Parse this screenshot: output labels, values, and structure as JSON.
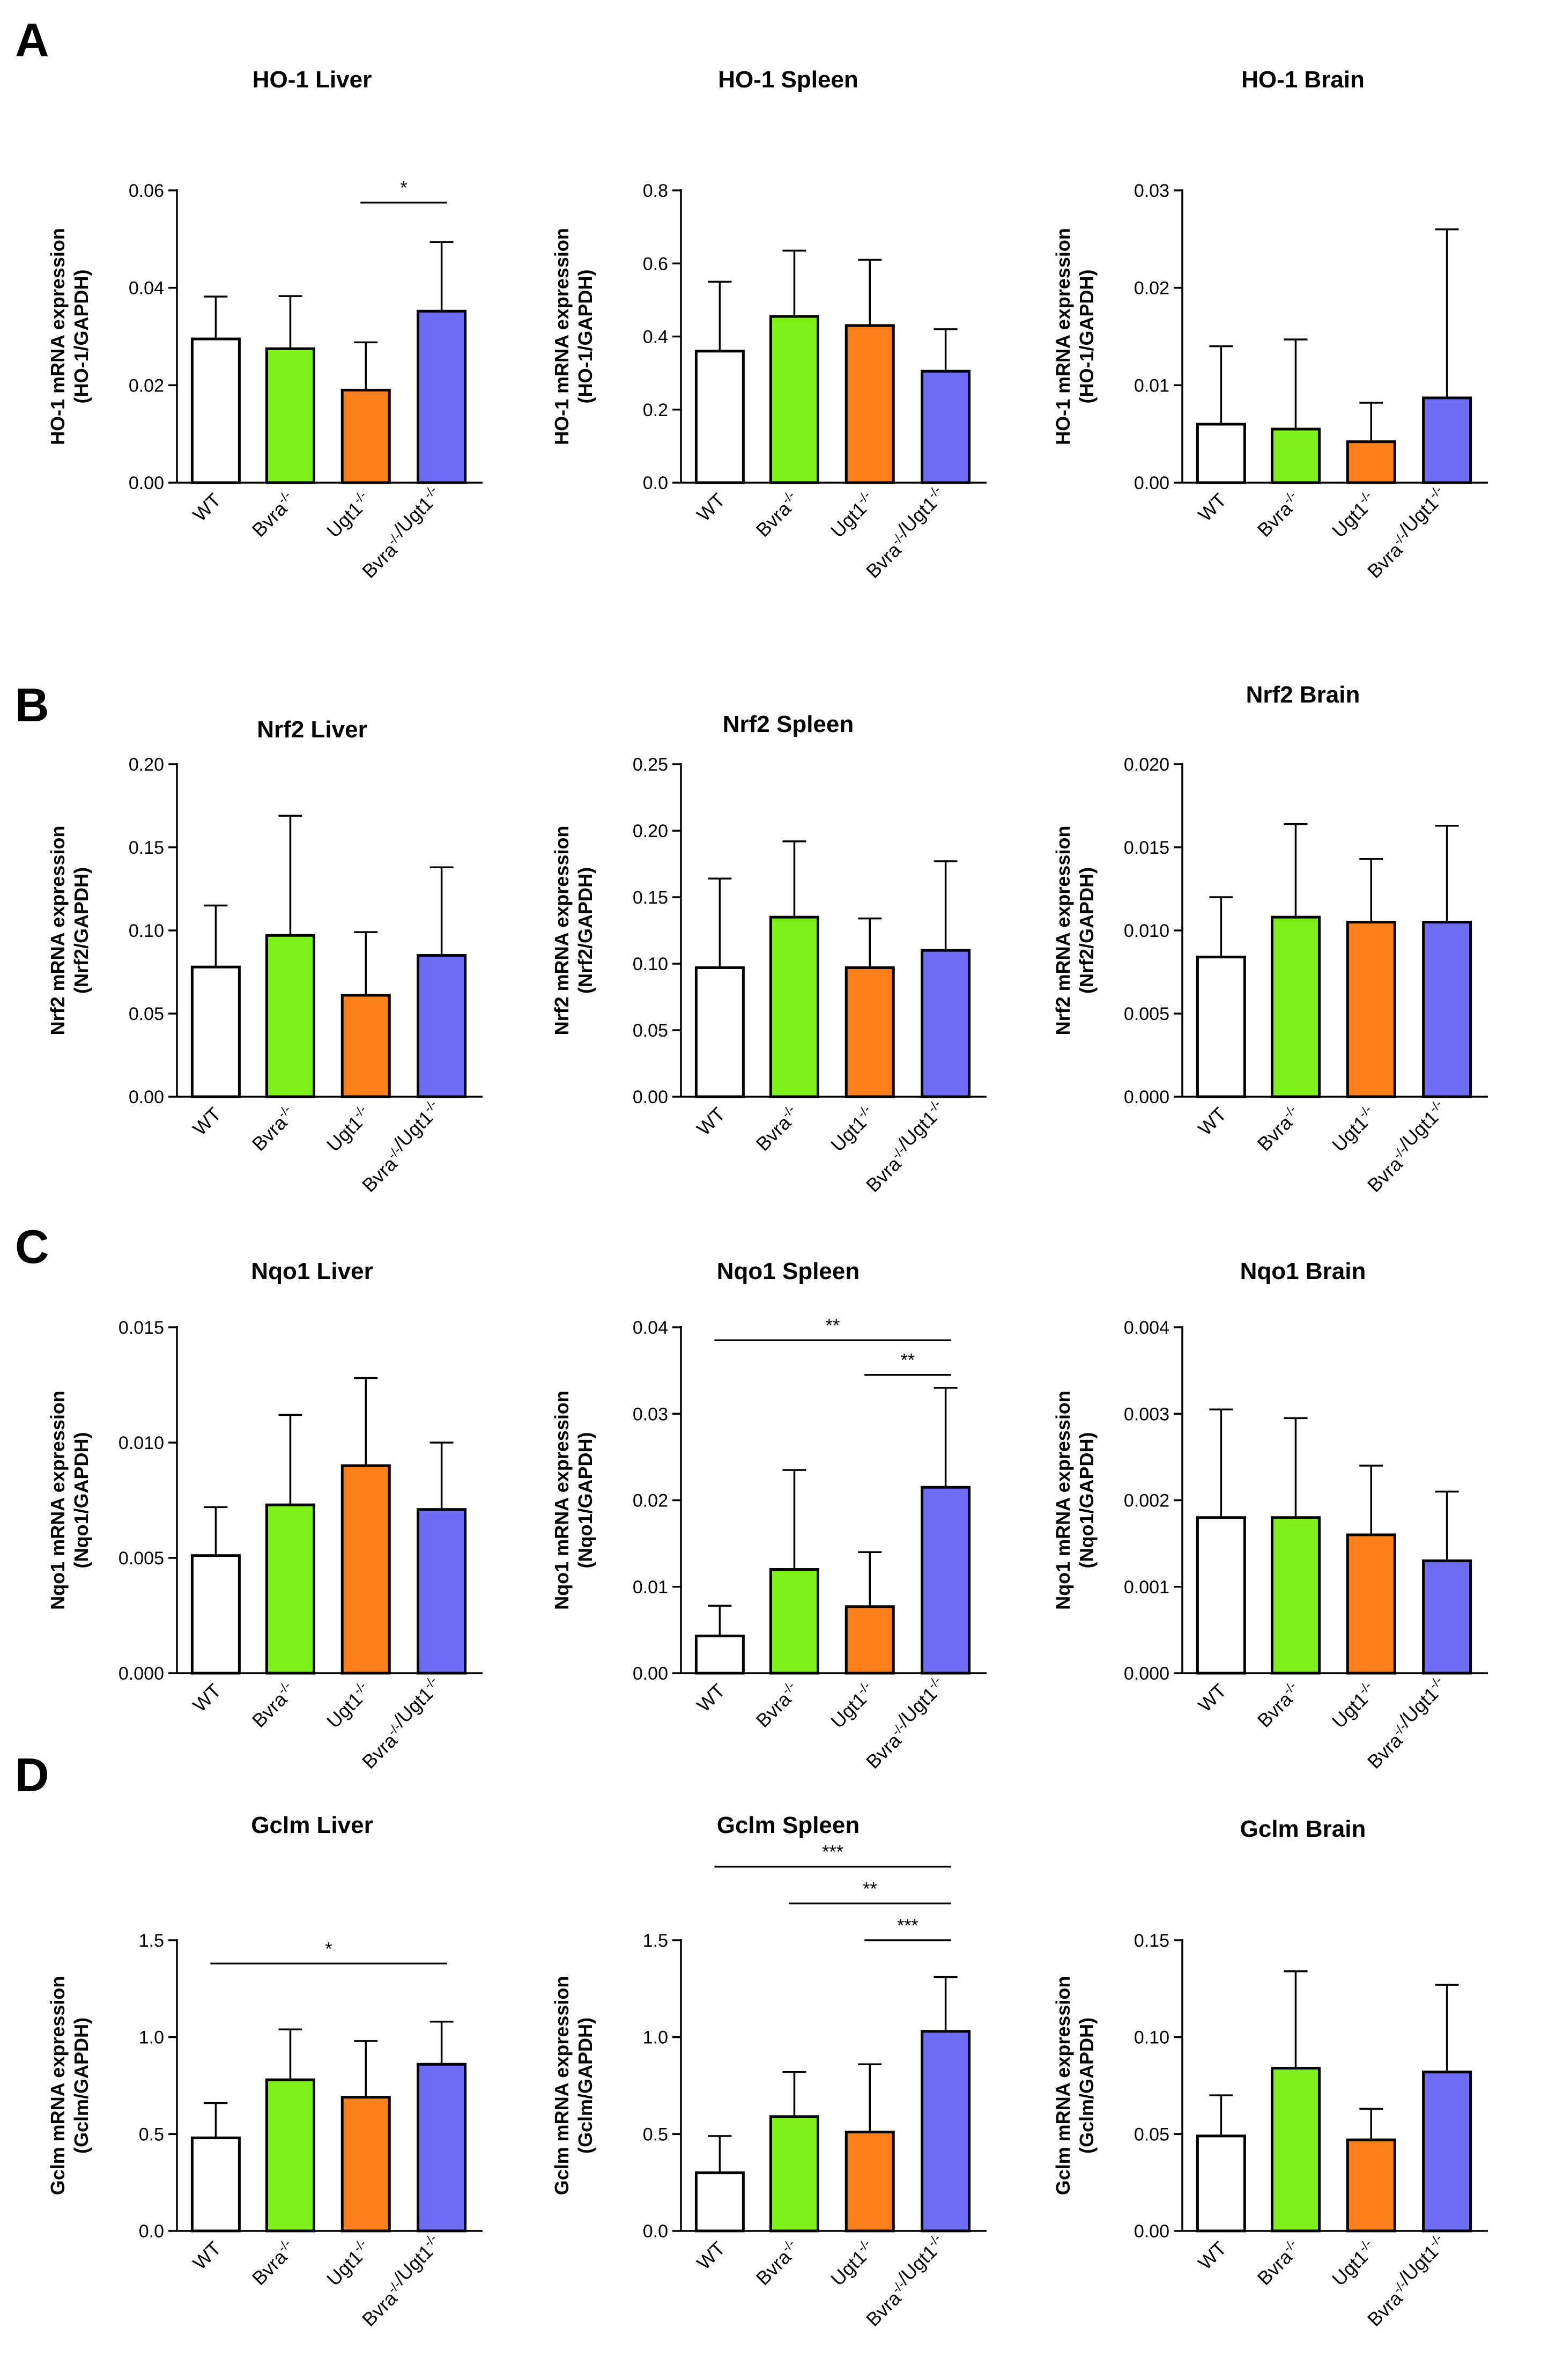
{
  "figure": {
    "categories": [
      "WT",
      "Bvra",
      "Ugt1",
      "Bvra/Ugt1"
    ],
    "category_superscript": "-/-",
    "colors": [
      "#ffffff",
      "#7ef01a",
      "#ff7f1a",
      "#6e6cf4"
    ],
    "panel_letters": [
      "A",
      "B",
      "C",
      "D"
    ]
  },
  "chart_data": [
    {
      "id": "ho1-liver",
      "panel": "A",
      "type": "bar",
      "title": "HO-1 Liver",
      "ylabel": "HO-1 mRNA expression",
      "ylabel2": "(HO-1/GAPDH)",
      "ylim": [
        0,
        0.06
      ],
      "ticks": [
        "0.00",
        "0.02",
        "0.04",
        "0.06"
      ],
      "values": [
        0.0295,
        0.0275,
        0.019,
        0.0352
      ],
      "errors": [
        0.0087,
        0.0108,
        0.0098,
        0.0142
      ],
      "sig": [
        {
          "from": 2,
          "to": 3,
          "y": 0.0575,
          "label": "*"
        }
      ]
    },
    {
      "id": "ho1-spleen",
      "panel": "A",
      "type": "bar",
      "title": "HO-1 Spleen",
      "ylabel": "HO-1 mRNA expression",
      "ylabel2": "(HO-1/GAPDH)",
      "ylim": [
        0,
        0.8
      ],
      "ticks": [
        "0.0",
        "0.2",
        "0.4",
        "0.6",
        "0.8"
      ],
      "values": [
        0.36,
        0.455,
        0.43,
        0.305
      ],
      "errors": [
        0.19,
        0.18,
        0.18,
        0.115
      ],
      "sig": []
    },
    {
      "id": "ho1-brain",
      "panel": "A",
      "type": "bar",
      "title": "HO-1 Brain",
      "ylabel": "HO-1 mRNA expression",
      "ylabel2": "(HO-1/GAPDH)",
      "ylim": [
        0,
        0.03
      ],
      "ticks": [
        "0.00",
        "0.01",
        "0.02",
        "0.03"
      ],
      "values": [
        0.006,
        0.0055,
        0.0042,
        0.0087
      ],
      "errors": [
        0.008,
        0.0092,
        0.004,
        0.0173
      ],
      "sig": []
    },
    {
      "id": "nrf2-liver",
      "panel": "B",
      "type": "bar",
      "title": "Nrf2 Liver",
      "ylabel": "Nrf2 mRNA expression",
      "ylabel2": "(Nrf2/GAPDH)",
      "ylim": [
        0,
        0.2
      ],
      "ticks": [
        "0.00",
        "0.05",
        "0.10",
        "0.15",
        "0.20"
      ],
      "values": [
        0.078,
        0.097,
        0.061,
        0.085
      ],
      "errors": [
        0.037,
        0.072,
        0.038,
        0.053
      ],
      "sig": []
    },
    {
      "id": "nrf2-spleen",
      "panel": "B",
      "type": "bar",
      "title": "Nrf2 Spleen",
      "ylabel": "Nrf2 mRNA expression",
      "ylabel2": "(Nrf2/GAPDH)",
      "ylim": [
        0,
        0.25
      ],
      "ticks": [
        "0.00",
        "0.05",
        "0.10",
        "0.15",
        "0.20",
        "0.25"
      ],
      "values": [
        0.097,
        0.135,
        0.097,
        0.11
      ],
      "errors": [
        0.067,
        0.057,
        0.037,
        0.067
      ],
      "sig": []
    },
    {
      "id": "nrf2-brain",
      "panel": "B",
      "type": "bar",
      "title": "Nrf2 Brain",
      "ylabel": "Nrf2 mRNA expression",
      "ylabel2": "(Nrf2/GAPDH)",
      "ylim": [
        0,
        0.02
      ],
      "ticks": [
        "0.000",
        "0.005",
        "0.010",
        "0.015",
        "0.020"
      ],
      "values": [
        0.0084,
        0.0108,
        0.0105,
        0.0105
      ],
      "errors": [
        0.0036,
        0.0056,
        0.0038,
        0.0058
      ],
      "sig": []
    },
    {
      "id": "nqo1-liver",
      "panel": "C",
      "type": "bar",
      "title": "Nqo1 Liver",
      "ylabel": "Nqo1 mRNA expression",
      "ylabel2": "(Nqo1/GAPDH)",
      "ylim": [
        0,
        0.015
      ],
      "ticks": [
        "0.000",
        "0.005",
        "0.010",
        "0.015"
      ],
      "values": [
        0.0051,
        0.0073,
        0.009,
        0.0071
      ],
      "errors": [
        0.0021,
        0.0039,
        0.0038,
        0.0029
      ],
      "sig": []
    },
    {
      "id": "nqo1-spleen",
      "panel": "C",
      "type": "bar",
      "title": "Nqo1 Spleen",
      "ylabel": "Nqo1 mRNA expression",
      "ylabel2": "(Nqo1/GAPDH)",
      "ylim": [
        0,
        0.04
      ],
      "ticks": [
        "0.00",
        "0.01",
        "0.02",
        "0.03",
        "0.04"
      ],
      "values": [
        0.0043,
        0.012,
        0.0077,
        0.0215
      ],
      "errors": [
        0.0035,
        0.0115,
        0.0063,
        0.0115
      ],
      "sig": [
        {
          "from": 0,
          "to": 3,
          "y": 0.0385,
          "label": "**"
        },
        {
          "from": 2,
          "to": 3,
          "y": 0.0345,
          "label": "**"
        }
      ]
    },
    {
      "id": "nqo1-brain",
      "panel": "C",
      "type": "bar",
      "title": "Nqo1 Brain",
      "ylabel": "Nqo1 mRNA expression",
      "ylabel2": "(Nqo1/GAPDH)",
      "ylim": [
        0,
        0.004
      ],
      "ticks": [
        "0.000",
        "0.001",
        "0.002",
        "0.003",
        "0.004"
      ],
      "values": [
        0.0018,
        0.0018,
        0.0016,
        0.0013
      ],
      "errors": [
        0.00125,
        0.00115,
        0.0008,
        0.0008
      ],
      "sig": []
    },
    {
      "id": "gclm-liver",
      "panel": "D",
      "type": "bar",
      "title": "Gclm Liver",
      "ylabel": "Gclm mRNA expression",
      "ylabel2": "(Gclm/GAPDH)",
      "ylim": [
        0,
        1.5
      ],
      "ticks": [
        "0.0",
        "0.5",
        "1.0",
        "1.5"
      ],
      "values": [
        0.48,
        0.78,
        0.69,
        0.86
      ],
      "errors": [
        0.18,
        0.26,
        0.29,
        0.22
      ],
      "sig": [
        {
          "from": 0,
          "to": 3,
          "y": 1.38,
          "label": "*"
        }
      ]
    },
    {
      "id": "gclm-spleen",
      "panel": "D",
      "type": "bar",
      "title": "Gclm Spleen",
      "ylabel": "Gclm mRNA expression",
      "ylabel2": "(Gclm/GAPDH)",
      "ylim": [
        0,
        1.5
      ],
      "ticks": [
        "0.0",
        "0.5",
        "1.0",
        "1.5"
      ],
      "values": [
        0.3,
        0.59,
        0.51,
        1.03
      ],
      "errors": [
        0.19,
        0.23,
        0.35,
        0.28
      ],
      "sig": [
        {
          "from": 0,
          "to": 3,
          "y": 1.88,
          "label": "***"
        },
        {
          "from": 1,
          "to": 3,
          "y": 1.69,
          "label": "**"
        },
        {
          "from": 2,
          "to": 3,
          "y": 1.5,
          "label": "***"
        }
      ]
    },
    {
      "id": "gclm-brain",
      "panel": "D",
      "type": "bar",
      "title": "Gclm Brain",
      "ylabel": "Gclm mRNA expression",
      "ylabel2": "(Gclm/GAPDH)",
      "ylim": [
        0,
        0.15
      ],
      "ticks": [
        "0.00",
        "0.05",
        "0.10",
        "0.15"
      ],
      "values": [
        0.049,
        0.084,
        0.047,
        0.082
      ],
      "errors": [
        0.021,
        0.05,
        0.016,
        0.045
      ],
      "sig": []
    }
  ]
}
